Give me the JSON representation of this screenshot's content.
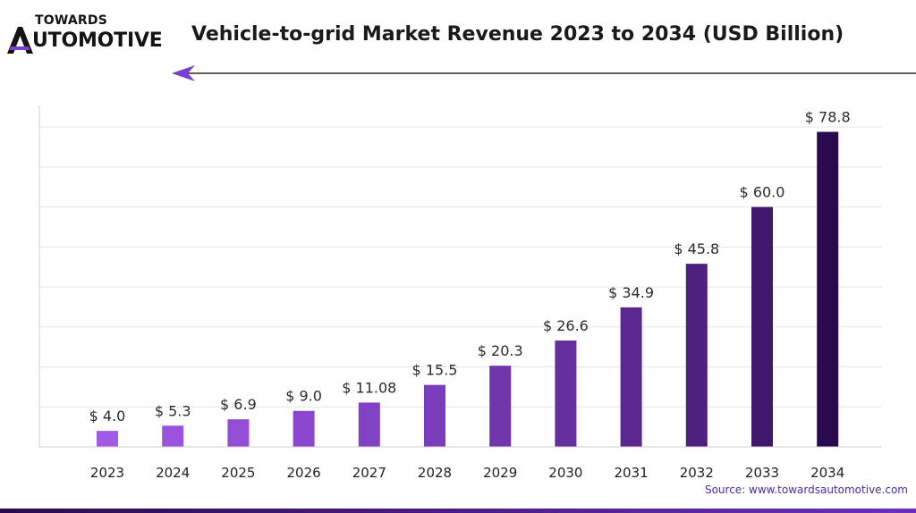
{
  "logo": {
    "top_text": "TOWARDS",
    "main_text": "UTOMOTIVE"
  },
  "chart_data": {
    "type": "bar",
    "title": "Vehicle-to-grid Market Revenue 2023 to 2034 (USD Billion)",
    "xlabel": "",
    "ylabel": "",
    "ylim": [
      0,
      100
    ],
    "grid": true,
    "categories": [
      "2023",
      "2024",
      "2025",
      "2026",
      "2027",
      "2028",
      "2029",
      "2030",
      "2031",
      "2032",
      "2033",
      "2034"
    ],
    "values": [
      4.0,
      5.3,
      6.9,
      9.0,
      11.08,
      15.5,
      20.3,
      26.6,
      34.9,
      45.8,
      60.0,
      78.8
    ],
    "data_labels": [
      "$ 4.0",
      "$ 5.3",
      "$ 6.9",
      "$ 9.0",
      "$ 11.08",
      "$ 15.5",
      "$ 20.3",
      "$ 26.6",
      "$ 34.9",
      "$ 45.8",
      "$ 60.0",
      "$ 78.8"
    ],
    "bar_colors": [
      "#a259e6",
      "#9a53df",
      "#924ed7",
      "#8a48cf",
      "#8142c5",
      "#7a3dbc",
      "#6f36ae",
      "#652f9f",
      "#5a288f",
      "#4d207e",
      "#3f176b",
      "#2a0a4e"
    ]
  },
  "source": "Source: www.towardsautomotive.com"
}
